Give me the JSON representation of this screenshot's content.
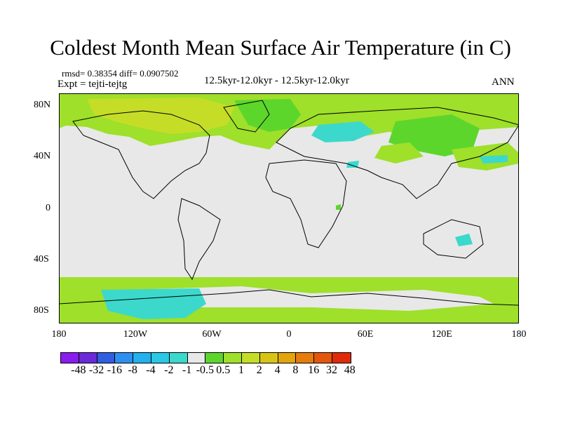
{
  "title": "Coldest Month Mean Surface Air Temperature (in C)",
  "stats": "rmsd= 0.38354  diff= 0.0907502",
  "expt": "Expt = tejti-tejtg",
  "period": "12.5kyr-12.0kyr - 12.5kyr-12.0kyr",
  "season": "ANN",
  "lat_ticks": [
    "80N",
    "40N",
    "0",
    "40S",
    "80S"
  ],
  "lon_ticks": [
    "180",
    "120W",
    "60W",
    "0",
    "60E",
    "120E",
    "180"
  ],
  "colorbar": {
    "colors": [
      "#8a1cf0",
      "#6a2ad8",
      "#2f5fe0",
      "#2d8ff0",
      "#22b0ee",
      "#2ac8e6",
      "#3cd8cc",
      "#e8e8e8",
      "#5dd62c",
      "#9ee02a",
      "#c6dd28",
      "#d8c414",
      "#e4a40c",
      "#e67c0c",
      "#e4560c",
      "#e02a08"
    ],
    "labels": [
      "-48",
      "-32",
      "-16",
      "-8",
      "-4",
      "-2",
      "-1",
      "-0.5",
      "0.5",
      "1",
      "2",
      "4",
      "8",
      "16",
      "32",
      "48"
    ]
  },
  "chart_data": {
    "type": "heatmap",
    "title": "Coldest Month Mean Surface Air Temperature (in C)",
    "variable": "Coldest month mean surface air temperature difference",
    "units": "C",
    "xlim": [
      -180,
      180
    ],
    "ylim": [
      -90,
      90
    ],
    "levels": [
      -48,
      -32,
      -16,
      -8,
      -4,
      -2,
      -1,
      -0.5,
      0.5,
      1,
      2,
      4,
      8,
      16,
      32,
      48
    ],
    "rmsd": 0.38354,
    "diff": 0.0907502,
    "regions": [
      {
        "value_range": [
          0.5,
          1
        ],
        "lon": [
          -170,
          -20
        ],
        "lat": [
          55,
          90
        ]
      },
      {
        "value_range": [
          1,
          2
        ],
        "lon": [
          -150,
          -75
        ],
        "lat": [
          60,
          80
        ]
      },
      {
        "value_range": [
          0.5,
          1
        ],
        "lon": [
          -180,
          180
        ],
        "lat": [
          -75,
          -55
        ]
      },
      {
        "value_range": [
          -1,
          -0.5
        ],
        "lon": [
          -160,
          -100
        ],
        "lat": [
          -80,
          -65
        ]
      },
      {
        "value_range": [
          -1,
          -0.5
        ],
        "lon": [
          15,
          50
        ],
        "lat": [
          52,
          65
        ]
      },
      {
        "value_range": [
          -1,
          -0.5
        ],
        "lon": [
          140,
          155
        ],
        "lat": [
          -32,
          -24
        ]
      },
      {
        "value_range": [
          0.5,
          1
        ],
        "lon": [
          50,
          170
        ],
        "lat": [
          30,
          60
        ]
      }
    ]
  }
}
